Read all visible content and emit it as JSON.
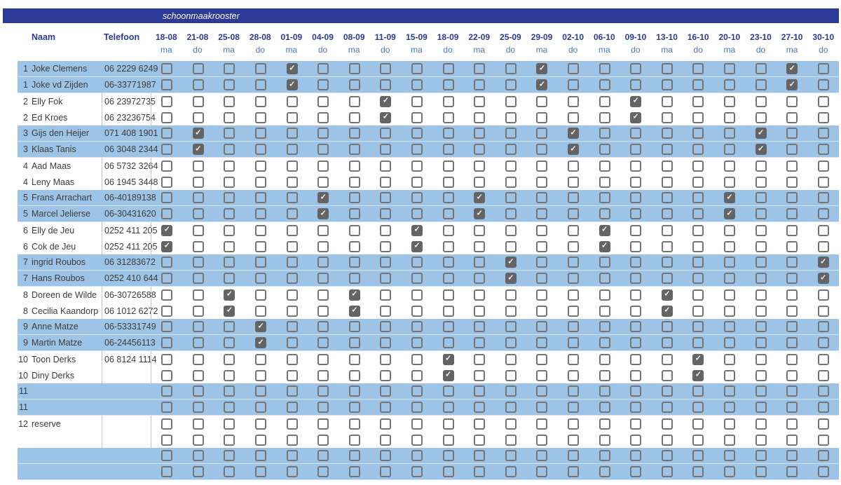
{
  "title": "schoonmaakrooster",
  "table": {
    "name_header": "Naam",
    "phone_header": "Telefoon",
    "date_columns": [
      {
        "date": "18-08",
        "day": "ma"
      },
      {
        "date": "21-08",
        "day": "do"
      },
      {
        "date": "25-08",
        "day": "ma"
      },
      {
        "date": "28-08",
        "day": "do"
      },
      {
        "date": "01-09",
        "day": "ma"
      },
      {
        "date": "04-09",
        "day": "do"
      },
      {
        "date": "08-09",
        "day": "ma"
      },
      {
        "date": "11-09",
        "day": "do"
      },
      {
        "date": "15-09",
        "day": "ma"
      },
      {
        "date": "18-09",
        "day": "do"
      },
      {
        "date": "22-09",
        "day": "ma"
      },
      {
        "date": "25-09",
        "day": "do"
      },
      {
        "date": "29-09",
        "day": "ma"
      },
      {
        "date": "02-10",
        "day": "do"
      },
      {
        "date": "06-10",
        "day": "ma"
      },
      {
        "date": "09-10",
        "day": "do"
      },
      {
        "date": "13-10",
        "day": "ma"
      },
      {
        "date": "16-10",
        "day": "do"
      },
      {
        "date": "20-10",
        "day": "ma"
      },
      {
        "date": "23-10",
        "day": "do"
      },
      {
        "date": "27-10",
        "day": "ma"
      },
      {
        "date": "30-10",
        "day": "do"
      }
    ],
    "rows": [
      {
        "num": "1",
        "name": "Joke Clemens",
        "phone": "06 2229 6249",
        "shade": "blue",
        "checked": [
          4,
          12,
          20
        ]
      },
      {
        "num": "1",
        "name": "Joke vd Zijden",
        "phone": "06-33771987",
        "shade": "blue",
        "checked": [
          4,
          12,
          20
        ]
      },
      {
        "num": "2",
        "name": "Elly Fok",
        "phone": "06 23972735",
        "shade": "white",
        "checked": [
          7,
          15
        ]
      },
      {
        "num": "2",
        "name": "Ed Kroes",
        "phone": "06 23236754",
        "shade": "white",
        "checked": [
          7,
          15
        ]
      },
      {
        "num": "3",
        "name": "Gijs den Heijer",
        "phone": "071 408 1901",
        "shade": "blue",
        "checked": [
          1,
          13,
          19
        ]
      },
      {
        "num": "3",
        "name": "Klaas Tanis",
        "phone": "06 3048 2344",
        "shade": "blue",
        "checked": [
          1,
          13,
          19
        ]
      },
      {
        "num": "4",
        "name": "Aad Maas",
        "phone": "06 5732 3264",
        "shade": "white",
        "checked": []
      },
      {
        "num": "4",
        "name": "Leny Maas",
        "phone": "06 1945 3448",
        "shade": "white",
        "checked": []
      },
      {
        "num": "5",
        "name": "Frans Arrachart",
        "phone": "06-40189138",
        "shade": "blue",
        "checked": [
          5,
          10,
          18
        ]
      },
      {
        "num": "5",
        "name": "Marcel Jelierse",
        "phone": "06-30431620",
        "shade": "blue",
        "checked": [
          5,
          10,
          18
        ]
      },
      {
        "num": "6",
        "name": "Elly de Jeu",
        "phone": "0252 411 205",
        "shade": "white",
        "checked": [
          0,
          8,
          14
        ]
      },
      {
        "num": "6",
        "name": "Cok de Jeu",
        "phone": "0252 411 205",
        "shade": "white",
        "checked": [
          0,
          8,
          14
        ]
      },
      {
        "num": "7",
        "name": "ingrid Roubos",
        "phone": "06 31283672",
        "shade": "blue",
        "checked": [
          11,
          21
        ]
      },
      {
        "num": "7",
        "name": "Hans Roubos",
        "phone": "0252 410 644",
        "shade": "blue",
        "checked": [
          11,
          21
        ]
      },
      {
        "num": "8",
        "name": "Doreen de Wilde",
        "phone": "06-30726588",
        "shade": "white",
        "checked": [
          2,
          6,
          16
        ]
      },
      {
        "num": "8",
        "name": "Cecilia Kaandorp",
        "phone": "06 1012 6272",
        "shade": "white",
        "checked": [
          2,
          6,
          16
        ]
      },
      {
        "num": "9",
        "name": "Anne Matze",
        "phone": "06-53331749",
        "shade": "blue",
        "checked": [
          3
        ]
      },
      {
        "num": "9",
        "name": "Martin Matze",
        "phone": "06-24456113",
        "shade": "blue",
        "checked": [
          3
        ]
      },
      {
        "num": "10",
        "name": "Toon Derks",
        "phone": "06 8124 1114",
        "shade": "white",
        "checked": [
          9,
          17
        ]
      },
      {
        "num": "10",
        "name": "Diny Derks",
        "phone": "",
        "shade": "white",
        "checked": [
          9,
          17
        ]
      },
      {
        "num": "11",
        "name": "",
        "phone": "",
        "shade": "blue",
        "checked": []
      },
      {
        "num": "11",
        "name": "",
        "phone": "",
        "shade": "blue",
        "checked": []
      },
      {
        "num": "12",
        "name": "reserve",
        "phone": "",
        "shade": "white",
        "checked": []
      },
      {
        "num": "",
        "name": "",
        "phone": "",
        "shade": "white",
        "checked": []
      },
      {
        "num": "",
        "name": "",
        "phone": "",
        "shade": "blue",
        "checked": []
      },
      {
        "num": "",
        "name": "",
        "phone": "",
        "shade": "blue",
        "checked": []
      }
    ]
  },
  "colors": {
    "header_bar": "#2e3a97",
    "row_blue": "#9dc3e6",
    "header_text": "#2d3a96",
    "day_text": "#5473be",
    "row_text": "#3d3d3d",
    "divider": "#c6c6c6",
    "checkbox_border": "#757575",
    "checkbox_checked_fill": "#646464",
    "checkmark": "#ffffff"
  },
  "icons": {
    "checked_mark": "checkmark-icon",
    "checkmark_glyph": "✓"
  }
}
